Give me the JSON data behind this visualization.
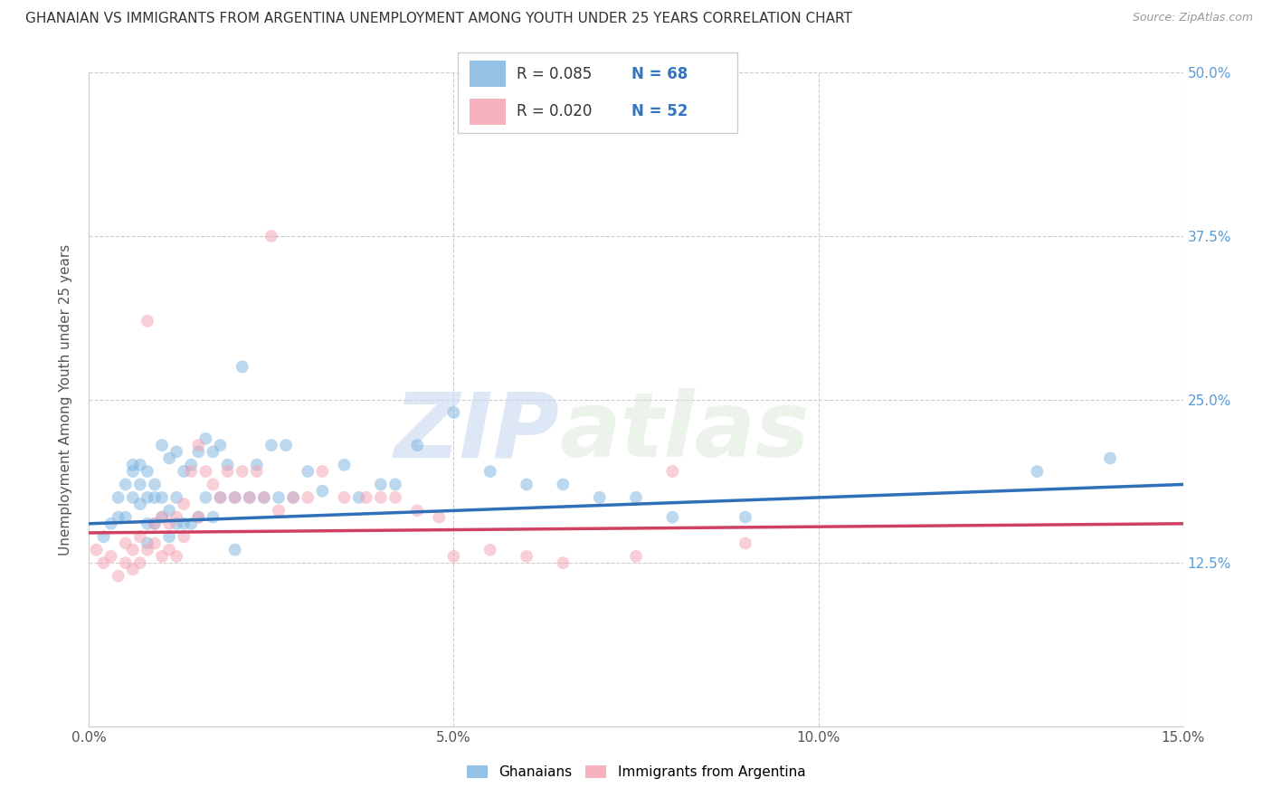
{
  "title": "GHANAIAN VS IMMIGRANTS FROM ARGENTINA UNEMPLOYMENT AMONG YOUTH UNDER 25 YEARS CORRELATION CHART",
  "source": "Source: ZipAtlas.com",
  "ylabel": "Unemployment Among Youth under 25 years",
  "x_min": 0.0,
  "x_max": 0.15,
  "y_min": 0.0,
  "y_max": 0.5,
  "color_blue": "#7ab3e0",
  "color_pink": "#f4a0b0",
  "color_line_blue": "#3070b8",
  "color_line_pink": "#d04060",
  "alpha_scatter": 0.5,
  "marker_size": 100,
  "legend_label1": "Ghanaians",
  "legend_label2": "Immigrants from Argentina",
  "legend_R1": "R = 0.085",
  "legend_N1": "N = 68",
  "legend_R2": "R = 0.020",
  "legend_N2": "N = 52",
  "watermark_zip": "ZIP",
  "watermark_atlas": "atlas",
  "ghanaian_x": [
    0.002,
    0.003,
    0.004,
    0.004,
    0.005,
    0.005,
    0.006,
    0.006,
    0.006,
    0.007,
    0.007,
    0.007,
    0.008,
    0.008,
    0.008,
    0.008,
    0.009,
    0.009,
    0.009,
    0.01,
    0.01,
    0.01,
    0.011,
    0.011,
    0.011,
    0.012,
    0.012,
    0.012,
    0.013,
    0.013,
    0.014,
    0.014,
    0.015,
    0.015,
    0.016,
    0.016,
    0.017,
    0.017,
    0.018,
    0.018,
    0.019,
    0.02,
    0.02,
    0.021,
    0.022,
    0.023,
    0.024,
    0.025,
    0.026,
    0.027,
    0.028,
    0.03,
    0.032,
    0.035,
    0.037,
    0.04,
    0.042,
    0.045,
    0.05,
    0.055,
    0.06,
    0.065,
    0.07,
    0.075,
    0.08,
    0.09,
    0.13,
    0.14
  ],
  "ghanaian_y": [
    0.145,
    0.155,
    0.16,
    0.175,
    0.16,
    0.185,
    0.175,
    0.195,
    0.2,
    0.17,
    0.185,
    0.2,
    0.14,
    0.155,
    0.175,
    0.195,
    0.155,
    0.175,
    0.185,
    0.16,
    0.175,
    0.215,
    0.145,
    0.165,
    0.205,
    0.155,
    0.175,
    0.21,
    0.155,
    0.195,
    0.155,
    0.2,
    0.16,
    0.21,
    0.175,
    0.22,
    0.16,
    0.21,
    0.175,
    0.215,
    0.2,
    0.135,
    0.175,
    0.275,
    0.175,
    0.2,
    0.175,
    0.215,
    0.175,
    0.215,
    0.175,
    0.195,
    0.18,
    0.2,
    0.175,
    0.185,
    0.185,
    0.215,
    0.24,
    0.195,
    0.185,
    0.185,
    0.175,
    0.175,
    0.16,
    0.16,
    0.195,
    0.205
  ],
  "argentina_x": [
    0.001,
    0.002,
    0.003,
    0.004,
    0.005,
    0.005,
    0.006,
    0.006,
    0.007,
    0.007,
    0.008,
    0.008,
    0.009,
    0.009,
    0.01,
    0.01,
    0.011,
    0.011,
    0.012,
    0.012,
    0.013,
    0.013,
    0.014,
    0.015,
    0.015,
    0.016,
    0.017,
    0.018,
    0.019,
    0.02,
    0.021,
    0.022,
    0.023,
    0.024,
    0.025,
    0.026,
    0.028,
    0.03,
    0.032,
    0.035,
    0.038,
    0.04,
    0.042,
    0.045,
    0.048,
    0.05,
    0.055,
    0.06,
    0.065,
    0.075,
    0.08,
    0.09
  ],
  "argentina_y": [
    0.135,
    0.125,
    0.13,
    0.115,
    0.125,
    0.14,
    0.12,
    0.135,
    0.125,
    0.145,
    0.135,
    0.31,
    0.14,
    0.155,
    0.13,
    0.16,
    0.135,
    0.155,
    0.13,
    0.16,
    0.145,
    0.17,
    0.195,
    0.16,
    0.215,
    0.195,
    0.185,
    0.175,
    0.195,
    0.175,
    0.195,
    0.175,
    0.195,
    0.175,
    0.375,
    0.165,
    0.175,
    0.175,
    0.195,
    0.175,
    0.175,
    0.175,
    0.175,
    0.165,
    0.16,
    0.13,
    0.135,
    0.13,
    0.125,
    0.13,
    0.195,
    0.14
  ],
  "line_blue_x0": 0.0,
  "line_blue_x1": 0.15,
  "line_blue_y0": 0.155,
  "line_blue_y1": 0.185,
  "line_pink_x0": 0.0,
  "line_pink_x1": 0.15,
  "line_pink_y0": 0.148,
  "line_pink_y1": 0.155
}
